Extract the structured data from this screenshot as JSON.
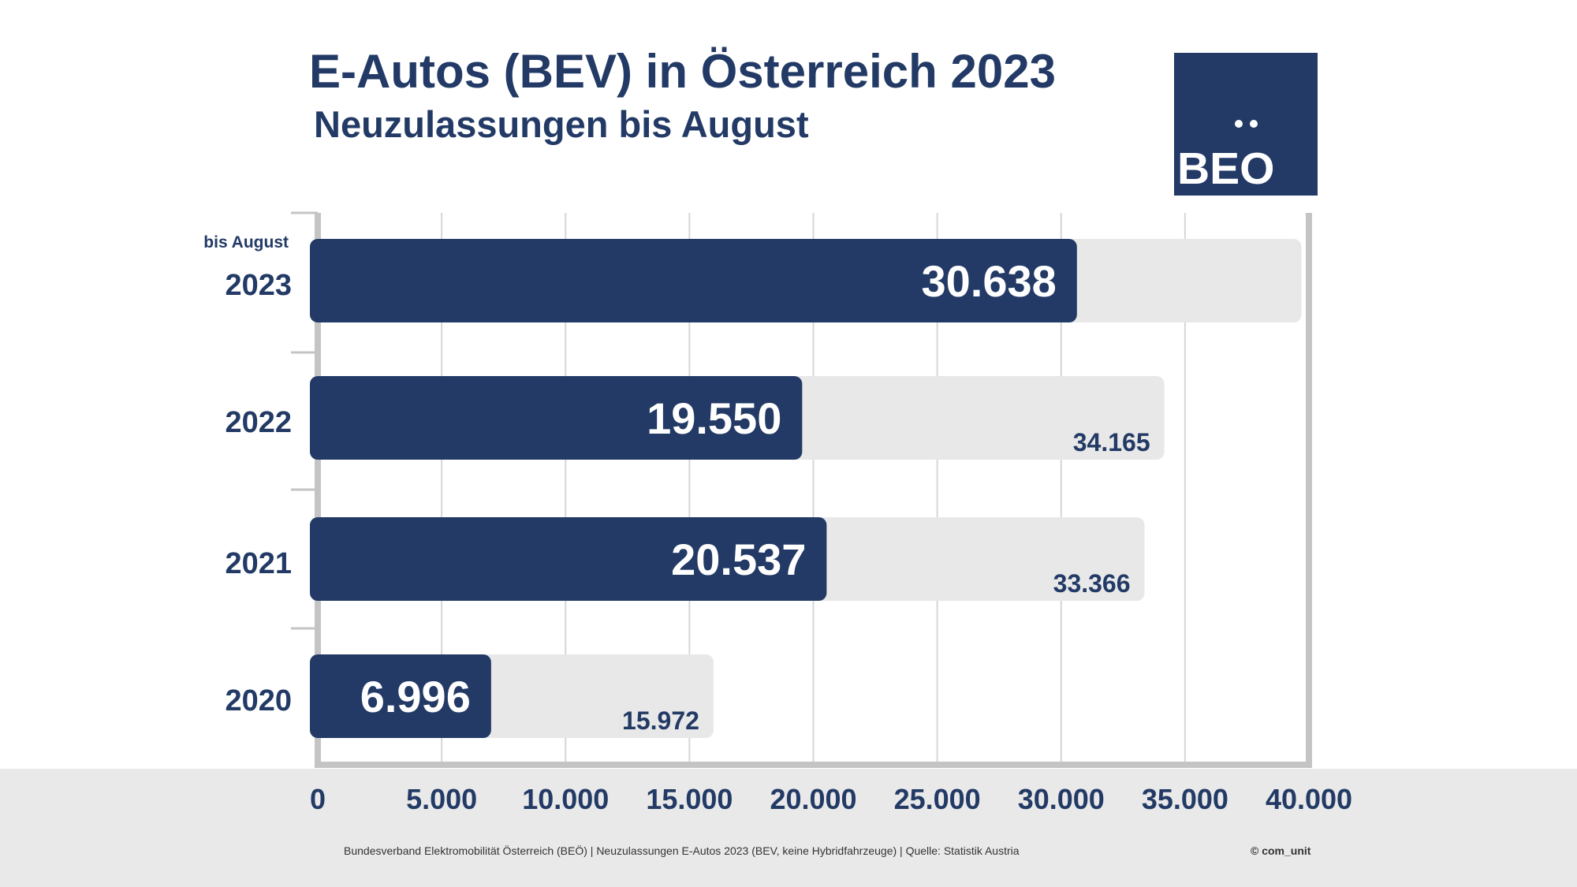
{
  "header": {
    "title": "E-Autos (BEV) in Österreich 2023",
    "subtitle": "Neuzulassungen bis August"
  },
  "logo": {
    "text": "BEO"
  },
  "chart_data": {
    "type": "bar",
    "orientation": "horizontal",
    "categories": [
      "2023",
      "2022",
      "2021",
      "2020"
    ],
    "category_notes": {
      "2023": "bis August"
    },
    "series": [
      {
        "values": [
          30638,
          19550,
          20537,
          6996
        ],
        "labels": [
          "30.638",
          "19.550",
          "20.537",
          "6.996"
        ],
        "color": "#223a65"
      },
      {
        "values": [
          39700,
          34165,
          33366,
          15972
        ],
        "labels": [
          null,
          "34.165",
          "33.366",
          "15.972"
        ],
        "color": "#e8e8e8"
      }
    ],
    "xlim": [
      0,
      40000
    ],
    "xticks": [
      0,
      5000,
      10000,
      15000,
      20000,
      25000,
      30000,
      35000,
      40000
    ],
    "xtick_labels": [
      "0",
      "5.000",
      "10.000",
      "15.000",
      "20.000",
      "25.000",
      "30.000",
      "35.000",
      "40.000"
    ],
    "grid": true,
    "legend": "none"
  },
  "footer": {
    "note": "Bundesverband Elektromobilität Österreich (BEÖ) | Neuzulassungen E-Autos 2023 (BEV, keine Hybridfahrzeuge) | Quelle: Statistik Austria",
    "copyright": "© com_unit"
  },
  "colors": {
    "primary": "#223a65",
    "bar_background": "#e8e8e8",
    "axis": "#c4c4c4",
    "grid": "#d6d6d6",
    "footer_band": "#e9e9e9"
  }
}
